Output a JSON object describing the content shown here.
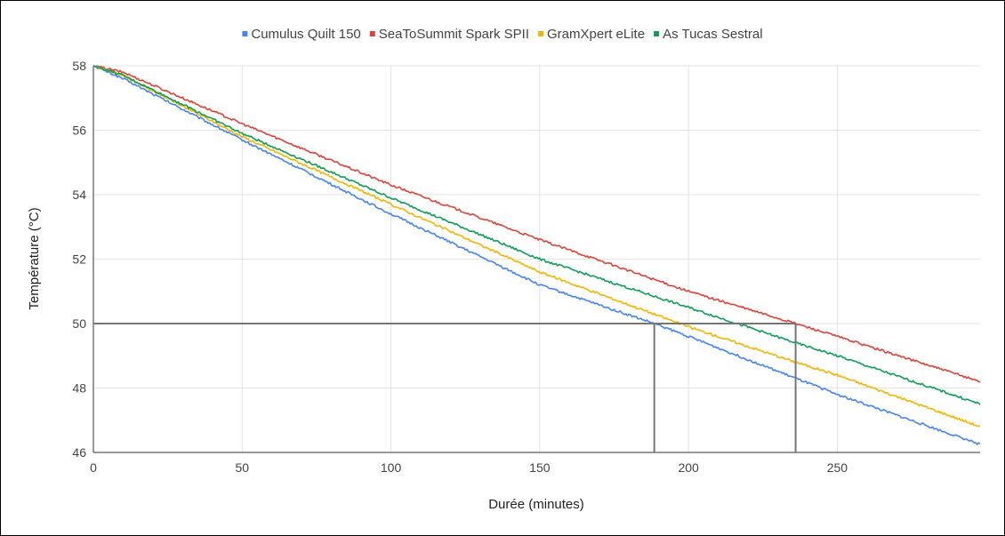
{
  "chart_data": {
    "type": "line",
    "xlabel": "Durée (minutes)",
    "ylabel": "Température (°C)",
    "xlim": [
      0,
      298
    ],
    "ylim": [
      46,
      58
    ],
    "x_ticks": [
      "0",
      "50",
      "100",
      "150",
      "200",
      "250"
    ],
    "y_ticks": [
      "46",
      "48",
      "50",
      "52",
      "54",
      "56",
      "58"
    ],
    "grid": true,
    "legend_position": "top",
    "series": [
      {
        "name": "Cumulus Quilt 150",
        "color": "#4285f4",
        "x": [
          0,
          10,
          50,
          100,
          150,
          188.5,
          200,
          236,
          250,
          298
        ],
        "values": [
          58,
          57.6,
          55.7,
          53.4,
          51.2,
          50.0,
          49.6,
          48.3,
          47.8,
          46.25
        ]
      },
      {
        "name": "SeaToSummit Spark SPII",
        "color": "#db4437",
        "x": [
          0,
          10,
          50,
          100,
          150,
          200,
          236,
          250,
          298
        ],
        "values": [
          58,
          57.8,
          56.2,
          54.3,
          52.6,
          51.0,
          50.0,
          49.6,
          48.2
        ]
      },
      {
        "name": "GramXpert eLite",
        "color": "#f4b400",
        "x": [
          0,
          10,
          50,
          100,
          150,
          200,
          236,
          250,
          298
        ],
        "values": [
          58,
          57.7,
          55.8,
          53.7,
          51.6,
          49.9,
          48.8,
          48.4,
          46.8
        ]
      },
      {
        "name": "As Tucas Sestral",
        "color": "#0f9d58",
        "x": [
          0,
          10,
          50,
          100,
          150,
          200,
          236,
          250,
          298
        ],
        "values": [
          58,
          57.7,
          55.9,
          53.9,
          52.0,
          50.5,
          49.4,
          49.0,
          47.5
        ]
      }
    ],
    "reference_lines": [
      {
        "type": "horizontal",
        "y": 50,
        "x_from": 0,
        "x_to": 236
      },
      {
        "type": "vertical",
        "x": 188.5,
        "y_from": 46,
        "y_to": 50
      },
      {
        "type": "vertical",
        "x": 236,
        "y_from": 46,
        "y_to": 50
      }
    ]
  }
}
